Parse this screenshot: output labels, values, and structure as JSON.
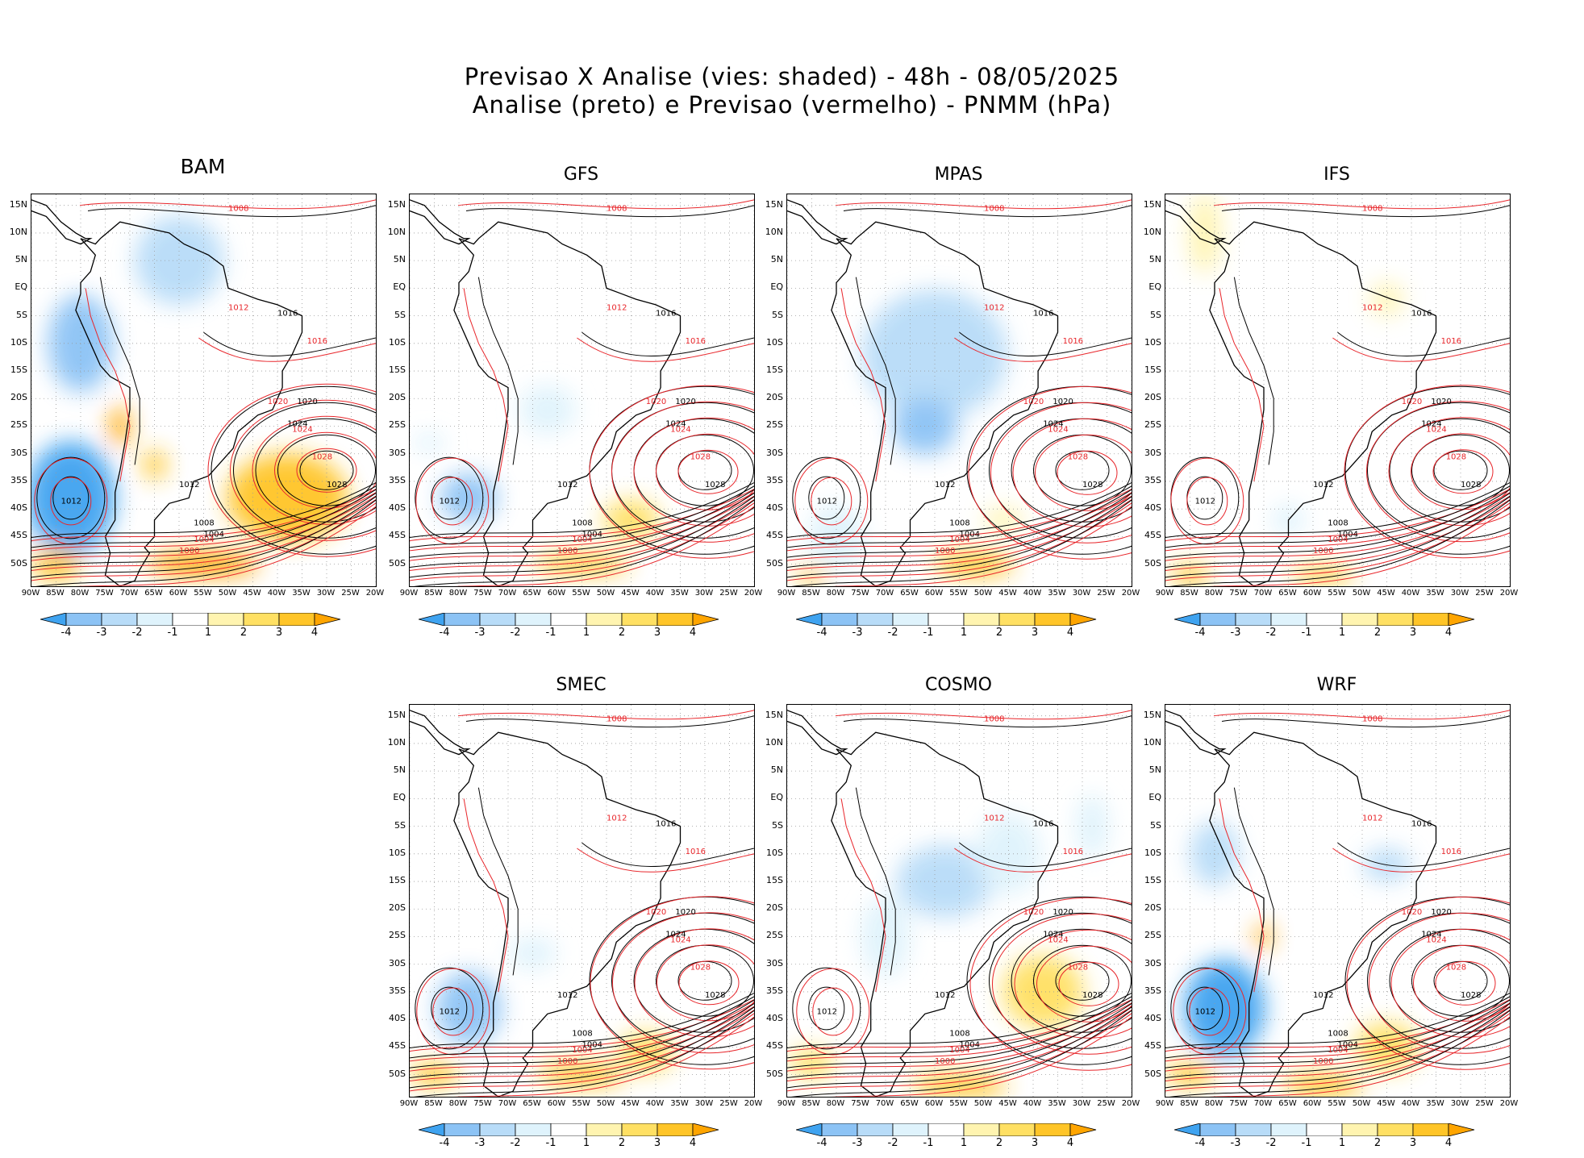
{
  "title_line1": "Previsao X Analise (vies: shaded) - 48h - 08/05/2025",
  "title_line2": "Analise (preto) e Previsao (vermelho) - PNMM (hPa)",
  "panels": [
    {
      "name": "BAM"
    },
    {
      "name": "GFS"
    },
    {
      "name": "MPAS"
    },
    {
      "name": "IFS"
    },
    {
      "name": "SMEC"
    },
    {
      "name": "COSMO"
    },
    {
      "name": "WRF"
    }
  ],
  "lat_labels": [
    "15N",
    "10N",
    "5N",
    "EQ",
    "5S",
    "10S",
    "15S",
    "20S",
    "25S",
    "30S",
    "35S",
    "40S",
    "45S",
    "50S"
  ],
  "lon_labels": [
    "90W",
    "85W",
    "80W",
    "75W",
    "70W",
    "65W",
    "60W",
    "55W",
    "50W",
    "45W",
    "40W",
    "35W",
    "30W",
    "25W",
    "20W"
  ],
  "colorbar": {
    "labels": [
      "-4",
      "-3",
      "-2",
      "-1",
      "1",
      "2",
      "3",
      "4"
    ],
    "colors": [
      "#3fa3f0",
      "#8cc3f5",
      "#b8dcf8",
      "#dff3fc",
      "#ffffff",
      "#fff4b0",
      "#ffe063",
      "#ffc528",
      "#ffa500"
    ]
  },
  "isobar_labels": {
    "analysis": [
      "1004",
      "1008",
      "1012",
      "1016",
      "1020",
      "1024",
      "1028"
    ],
    "forecast": [
      "1000",
      "1004",
      "1008",
      "1012",
      "1016",
      "1020",
      "1024",
      "1028"
    ]
  },
  "colors": {
    "analysis_line": "#000000",
    "forecast_line": "#e8262b",
    "grid": "#9a9a9a"
  }
}
